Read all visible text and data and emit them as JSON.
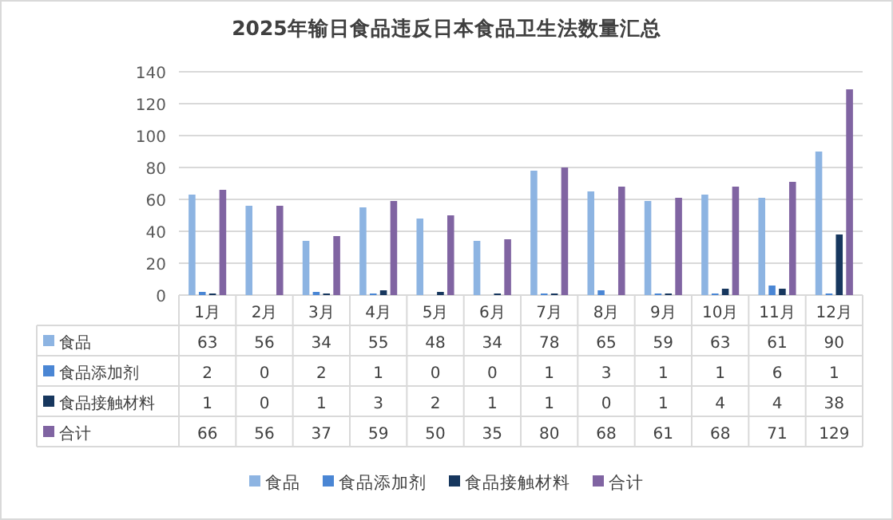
{
  "chart_data": {
    "type": "bar",
    "title": "2025年输日食品违反日本食品卫生法数量汇总",
    "categories": [
      "1月",
      "2月",
      "3月",
      "4月",
      "5月",
      "6月",
      "7月",
      "8月",
      "9月",
      "10月",
      "11月",
      "12月"
    ],
    "series": [
      {
        "name": "食品",
        "color": "#8db4e2",
        "values": [
          63,
          56,
          34,
          55,
          48,
          34,
          78,
          65,
          59,
          63,
          61,
          90
        ]
      },
      {
        "name": "食品添加剂",
        "color": "#4a86d4",
        "values": [
          2,
          0,
          2,
          1,
          0,
          0,
          1,
          3,
          1,
          1,
          6,
          1
        ]
      },
      {
        "name": "食品接触材料",
        "color": "#17375e",
        "values": [
          1,
          0,
          1,
          3,
          2,
          1,
          1,
          0,
          1,
          4,
          4,
          38
        ]
      },
      {
        "name": "合计",
        "color": "#8064a2",
        "values": [
          66,
          56,
          37,
          59,
          50,
          35,
          80,
          68,
          61,
          68,
          71,
          129
        ]
      }
    ],
    "ylim": [
      0,
      140
    ],
    "yticks": [
      0,
      20,
      40,
      60,
      80,
      100,
      120,
      140
    ],
    "grid": "y",
    "legend": "bottom",
    "data_labels": true
  }
}
